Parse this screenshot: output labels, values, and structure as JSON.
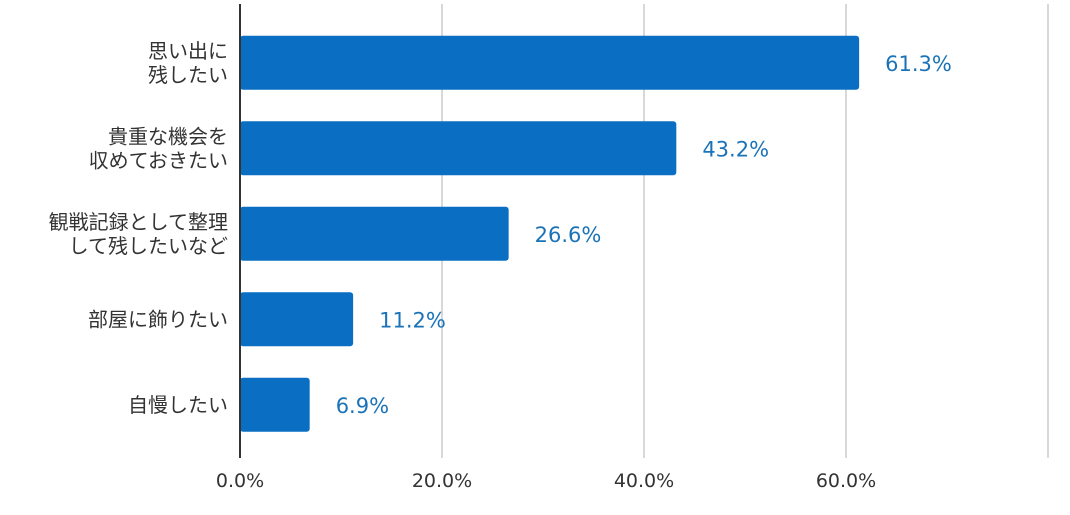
{
  "chart_data": {
    "type": "bar",
    "orientation": "horizontal",
    "title": "",
    "xlabel": "",
    "ylabel": "",
    "categories": [
      [
        "思い出に",
        "残したい"
      ],
      [
        "貴重な機会を",
        "収めておきたい"
      ],
      [
        "観戦記録として整理",
        "して残したいなど"
      ],
      [
        "部屋に飾りたい"
      ],
      [
        "自慢したい"
      ]
    ],
    "values": [
      61.3,
      43.2,
      26.6,
      11.2,
      6.9
    ],
    "value_labels": [
      "61.3%",
      "43.2%",
      "26.6%",
      "11.2%",
      "6.9%"
    ],
    "xlim": [
      0,
      80
    ],
    "xticks": [
      0,
      20,
      40,
      60,
      80
    ],
    "xtick_labels": [
      "0.0%",
      "20.0%",
      "40.0%",
      "60.0%",
      ""
    ],
    "grid": true,
    "legend": "none",
    "colors": {
      "bar": "#0a6fc2",
      "data_label": "#1a73b8",
      "gridline": "#cccccc",
      "axis": "#333333"
    }
  }
}
